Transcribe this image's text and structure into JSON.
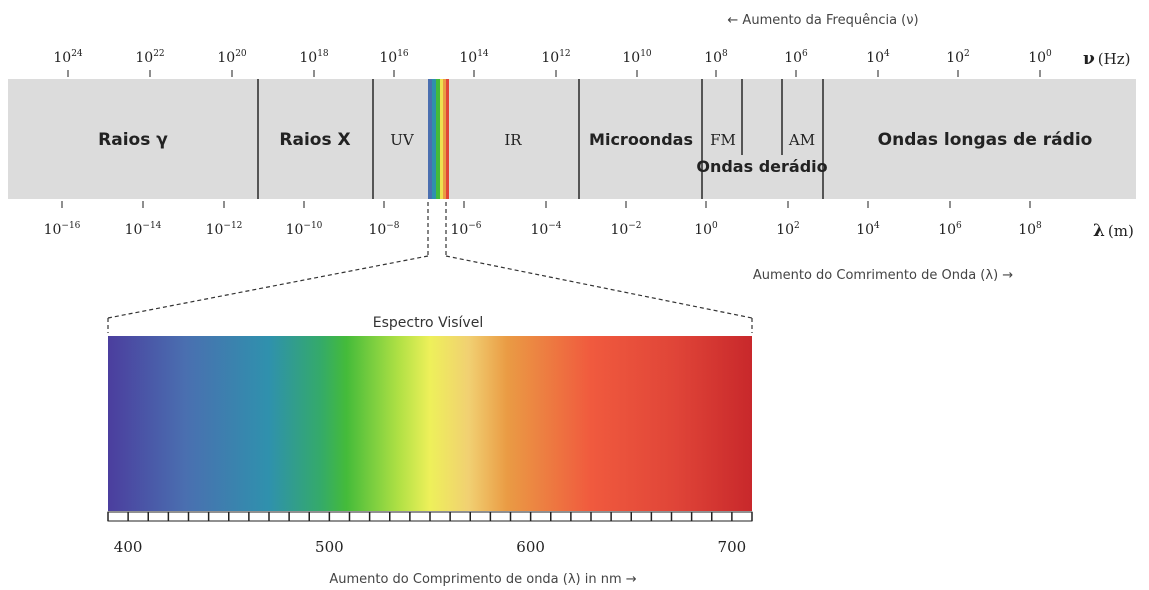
{
  "frequency_axis": {
    "direction_label": "← Aumento da Frequência (ν)",
    "unit_symbol": "ν",
    "unit": "(Hz)",
    "ticks": [
      {
        "base": "10",
        "exp": "24"
      },
      {
        "base": "10",
        "exp": "22"
      },
      {
        "base": "10",
        "exp": "20"
      },
      {
        "base": "10",
        "exp": "18"
      },
      {
        "base": "10",
        "exp": "16"
      },
      {
        "base": "10",
        "exp": "14"
      },
      {
        "base": "10",
        "exp": "12"
      },
      {
        "base": "10",
        "exp": "10"
      },
      {
        "base": "10",
        "exp": "8"
      },
      {
        "base": "10",
        "exp": "6"
      },
      {
        "base": "10",
        "exp": "4"
      },
      {
        "base": "10",
        "exp": "2"
      },
      {
        "base": "10",
        "exp": "0"
      }
    ]
  },
  "wavelength_axis": {
    "direction_label": "Aumento do Comrimento de Onda (λ) →",
    "unit_symbol": "λ",
    "unit": "(m)",
    "ticks": [
      {
        "base": "10",
        "exp": "−16"
      },
      {
        "base": "10",
        "exp": "−14"
      },
      {
        "base": "10",
        "exp": "−12"
      },
      {
        "base": "10",
        "exp": "−10"
      },
      {
        "base": "10",
        "exp": "−8"
      },
      {
        "base": "10",
        "exp": "−6"
      },
      {
        "base": "10",
        "exp": "−4"
      },
      {
        "base": "10",
        "exp": "−2"
      },
      {
        "base": "10",
        "exp": "0"
      },
      {
        "base": "10",
        "exp": "2"
      },
      {
        "base": "10",
        "exp": "4"
      },
      {
        "base": "10",
        "exp": "6"
      },
      {
        "base": "10",
        "exp": "8"
      }
    ]
  },
  "bands": {
    "gamma": "Raios γ",
    "xray": "Raios X",
    "uv": "UV",
    "ir": "IR",
    "microwave": "Microondas",
    "fm": "FM",
    "radio": "Ondas derádio",
    "am": "AM",
    "long_radio": "Ondas longas de rádio"
  },
  "visible_spectrum": {
    "title": "Espectro Visível",
    "axis_label": "Aumento do Comprimento de onda (λ) in nm →",
    "range_nm": [
      390,
      710
    ],
    "ticks": [
      {
        "value": 400,
        "label": "400"
      },
      {
        "value": 500,
        "label": "500"
      },
      {
        "value": 600,
        "label": "600"
      },
      {
        "value": 700,
        "label": "700"
      }
    ],
    "minor_tick_step_nm": 10
  },
  "colors": {
    "band_fill": "#dcdcdc",
    "band_divider": "#333333",
    "text": "#222222",
    "label_gray": "#444444"
  }
}
